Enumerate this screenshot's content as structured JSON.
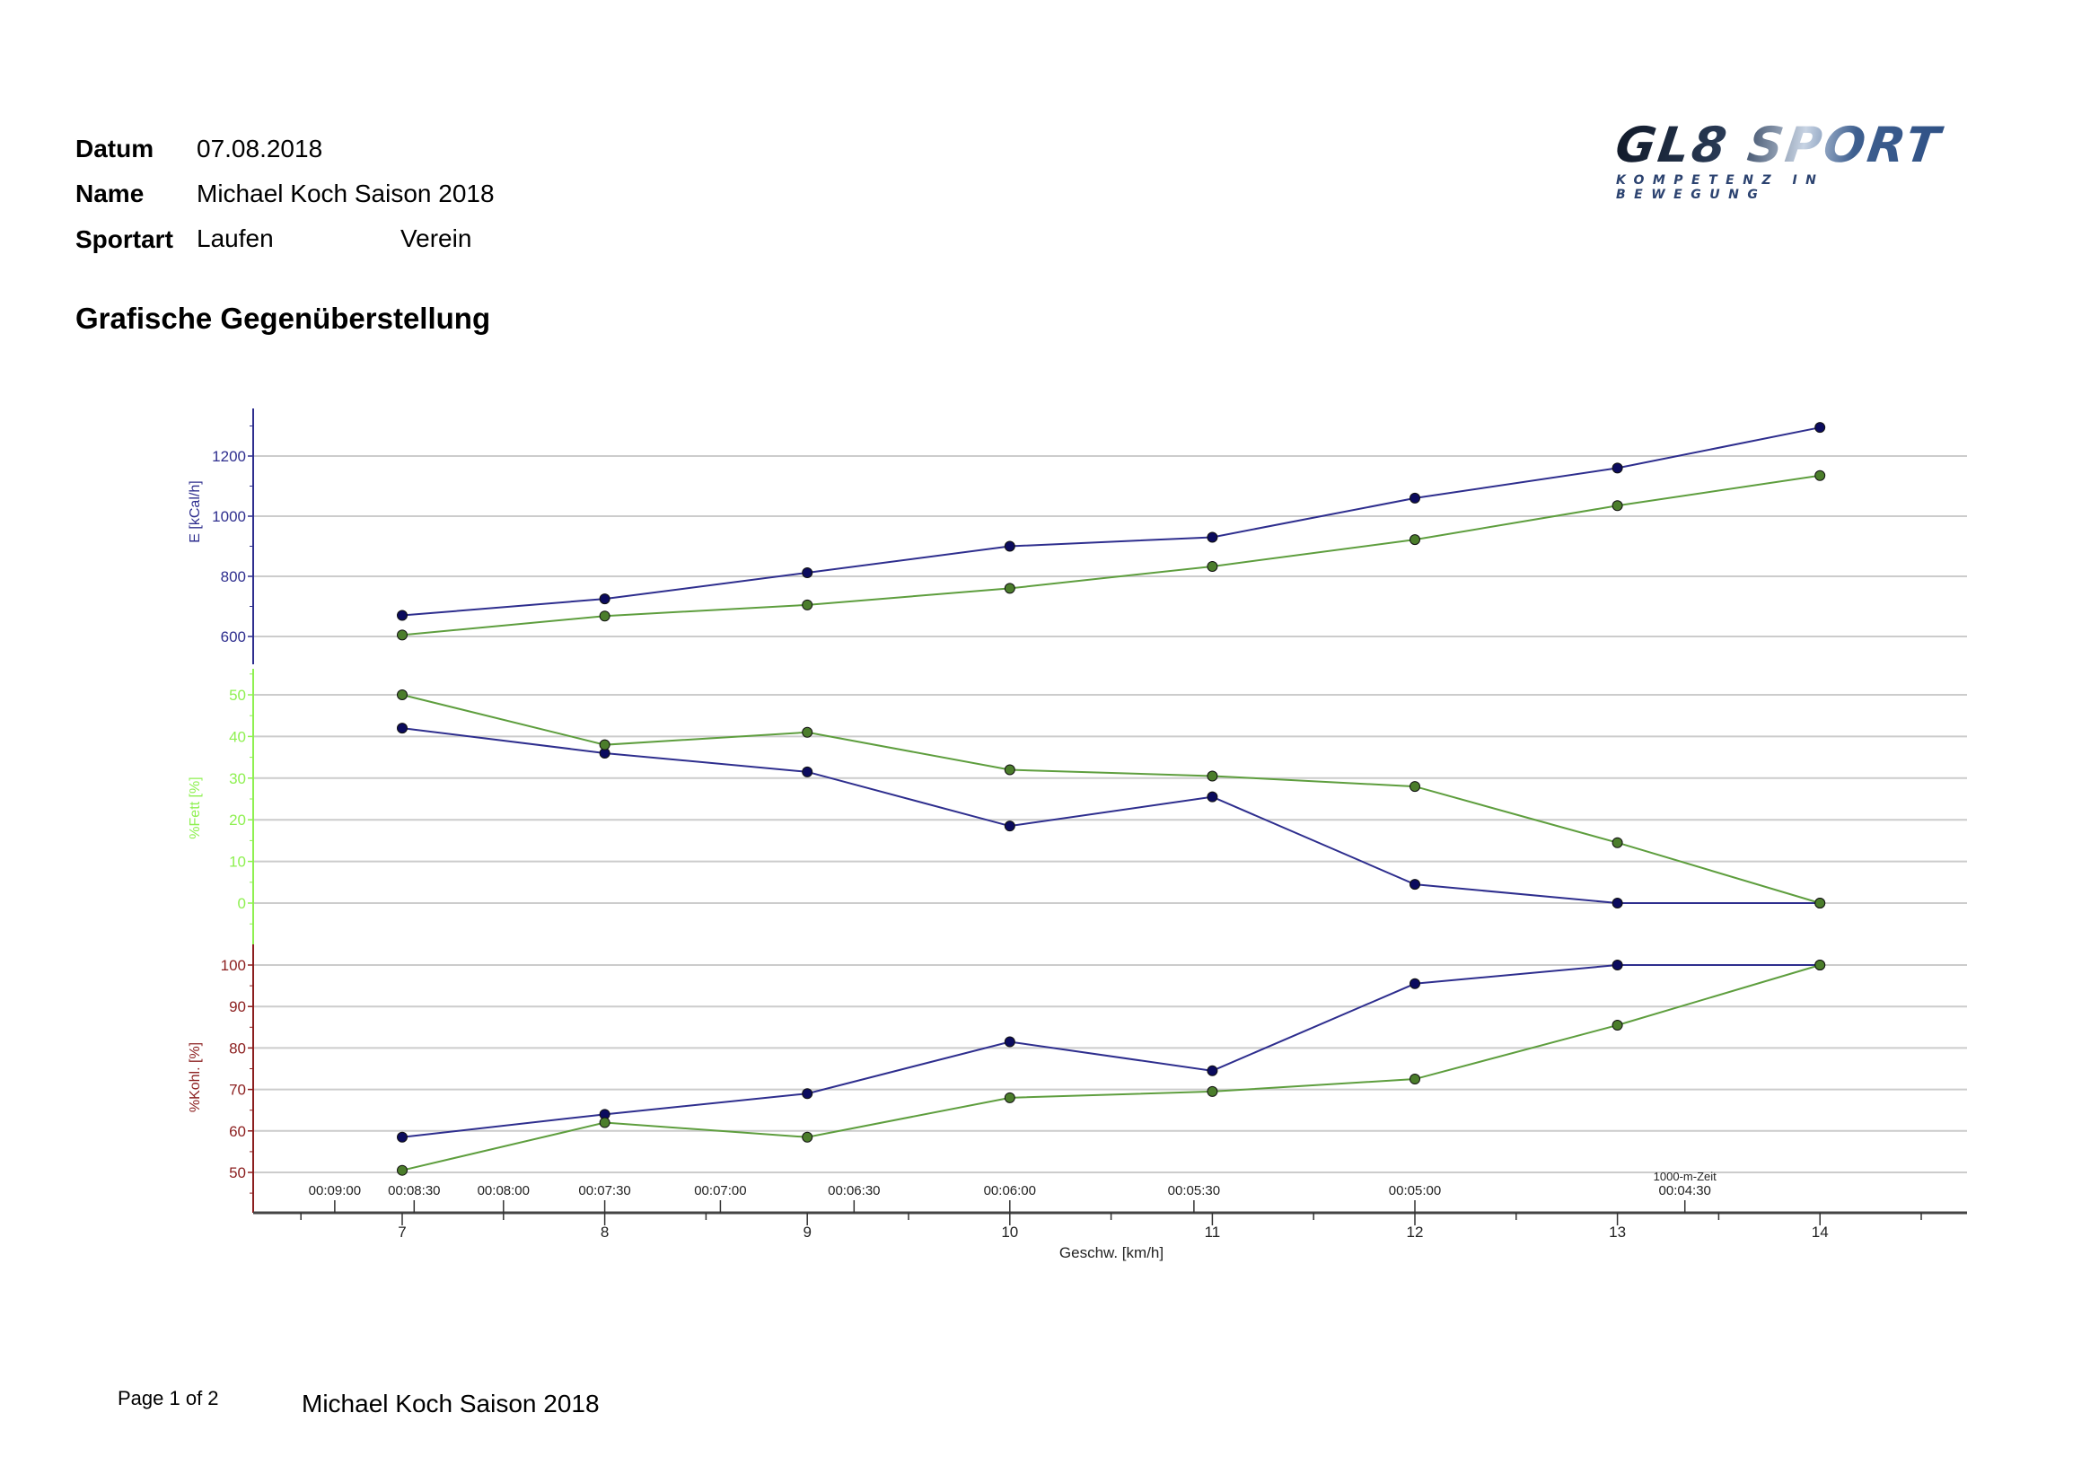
{
  "header": {
    "datum_label": "Datum",
    "datum_value": "07.08.2018",
    "name_label": "Name",
    "name_value": "Michael Koch Saison 2018",
    "sportart_label": "Sportart",
    "sportart_value": "Laufen",
    "verein_label": "Verein"
  },
  "logo": {
    "main": "GL8 SPORT",
    "tagline": "KOMPETENZ IN BEWEGUNG"
  },
  "section_title": "Grafische Gegenüberstellung",
  "footer": {
    "page": "Page 1 of 2",
    "name": "Michael Koch Saison 2018"
  },
  "colors": {
    "blue_line": "#2e2e8e",
    "blue_marker": "#0b0b5e",
    "green_line": "#5e9e3e",
    "green_marker": "#4b7d2b",
    "axis_e": "#2e2e8e",
    "axis_fett": "#8ef050",
    "axis_kohl": "#8b1e1e",
    "grid": "#cccccc"
  },
  "chart_data": {
    "type": "line",
    "xlabel": "Geschw. [km/h]",
    "x": [
      7,
      8,
      9,
      10,
      11,
      12,
      13,
      14
    ],
    "xlim": [
      6.25,
      14.5
    ],
    "x_ticks": [
      "7",
      "8",
      "9",
      "10",
      "11",
      "12",
      "13",
      "14"
    ],
    "secondary_x": {
      "label": "1000-m-Zeit",
      "ticks": [
        {
          "label": "00:09:00",
          "speed": 6.667
        },
        {
          "label": "00:08:30",
          "speed": 7.059
        },
        {
          "label": "00:08:00",
          "speed": 7.5
        },
        {
          "label": "00:07:30",
          "speed": 8.0
        },
        {
          "label": "00:07:00",
          "speed": 8.571
        },
        {
          "label": "00:06:30",
          "speed": 9.231
        },
        {
          "label": "00:06:00",
          "speed": 10.0
        },
        {
          "label": "00:05:30",
          "speed": 10.909
        },
        {
          "label": "00:05:00",
          "speed": 12.0
        },
        {
          "label": "00:04:30",
          "speed": 13.333
        }
      ]
    },
    "panels": [
      {
        "ylabel": "E [kCal/h]",
        "ylim": [
          500,
          1360
        ],
        "ticks": [
          "600",
          "800",
          "1000",
          "1200"
        ],
        "tick_values": [
          600,
          800,
          1000,
          1200
        ],
        "series": [
          {
            "name": "blue",
            "values": [
              670,
              725,
              812,
              900,
              930,
              1060,
              1160,
              1295
            ]
          },
          {
            "name": "green",
            "values": [
              605,
              668,
              705,
              760,
              833,
              922,
              1035,
              1135
            ]
          }
        ]
      },
      {
        "ylabel": "%Fett [%]",
        "ylim": [
          -10,
          55
        ],
        "ticks": [
          "0",
          "10",
          "20",
          "30",
          "40",
          "50"
        ],
        "tick_values": [
          0,
          10,
          20,
          30,
          40,
          50
        ],
        "series": [
          {
            "name": "blue",
            "values": [
              42,
              36,
              31.5,
              18.5,
              25.5,
              4.5,
              0,
              0
            ]
          },
          {
            "name": "green",
            "values": [
              50,
              38,
              41,
              32,
              30.5,
              28,
              14.5,
              0
            ]
          }
        ]
      },
      {
        "ylabel": "%Kohl. [%]",
        "ylim": [
          40,
          105
        ],
        "ticks": [
          "50",
          "60",
          "70",
          "80",
          "90",
          "100"
        ],
        "tick_values": [
          50,
          60,
          70,
          80,
          90,
          100
        ],
        "series": [
          {
            "name": "blue",
            "values": [
              58.5,
              64,
              69,
              81.5,
              74.5,
              95.5,
              100,
              100
            ]
          },
          {
            "name": "green",
            "values": [
              50.5,
              62,
              58.5,
              68,
              69.5,
              72.5,
              85.5,
              100
            ]
          }
        ]
      }
    ]
  }
}
